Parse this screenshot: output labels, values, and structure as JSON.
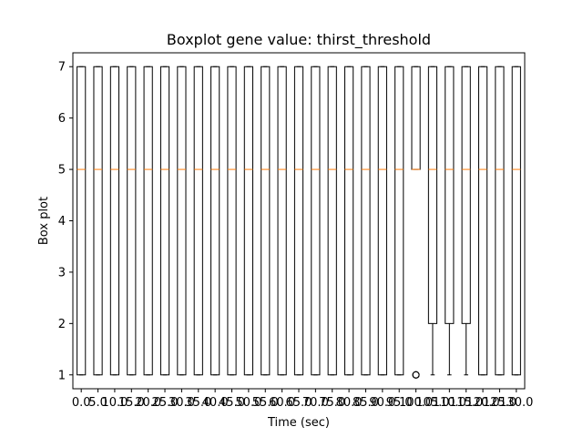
{
  "chart_data": {
    "type": "boxplot",
    "title": "Boxplot gene value: thirst_threshold",
    "xlabel": "Time (sec)",
    "ylabel": "Box plot",
    "ylim": [
      0.73,
      7.27
    ],
    "yticks": [
      1,
      2,
      3,
      4,
      5,
      6,
      7
    ],
    "grid": false,
    "categories": [
      "0.0",
      "5.0",
      "10.0",
      "15.0",
      "20.0",
      "25.0",
      "30.0",
      "35.0",
      "40.0",
      "45.0",
      "50.0",
      "55.0",
      "60.0",
      "65.0",
      "70.0",
      "75.0",
      "80.0",
      "85.0",
      "90.0",
      "95.0",
      "100.0",
      "105.0",
      "110.0",
      "115.0",
      "120.0",
      "125.0",
      "130.0"
    ],
    "boxes": [
      {
        "whislo": 1,
        "q1": 1,
        "med": 5,
        "q3": 7,
        "whishi": 7,
        "fliers": []
      },
      {
        "whislo": 1,
        "q1": 1,
        "med": 5,
        "q3": 7,
        "whishi": 7,
        "fliers": []
      },
      {
        "whislo": 1,
        "q1": 1,
        "med": 5,
        "q3": 7,
        "whishi": 7,
        "fliers": []
      },
      {
        "whislo": 1,
        "q1": 1,
        "med": 5,
        "q3": 7,
        "whishi": 7,
        "fliers": []
      },
      {
        "whislo": 1,
        "q1": 1,
        "med": 5,
        "q3": 7,
        "whishi": 7,
        "fliers": []
      },
      {
        "whislo": 1,
        "q1": 1,
        "med": 5,
        "q3": 7,
        "whishi": 7,
        "fliers": []
      },
      {
        "whislo": 1,
        "q1": 1,
        "med": 5,
        "q3": 7,
        "whishi": 7,
        "fliers": []
      },
      {
        "whislo": 1,
        "q1": 1,
        "med": 5,
        "q3": 7,
        "whishi": 7,
        "fliers": []
      },
      {
        "whislo": 1,
        "q1": 1,
        "med": 5,
        "q3": 7,
        "whishi": 7,
        "fliers": []
      },
      {
        "whislo": 1,
        "q1": 1,
        "med": 5,
        "q3": 7,
        "whishi": 7,
        "fliers": []
      },
      {
        "whislo": 1,
        "q1": 1,
        "med": 5,
        "q3": 7,
        "whishi": 7,
        "fliers": []
      },
      {
        "whislo": 1,
        "q1": 1,
        "med": 5,
        "q3": 7,
        "whishi": 7,
        "fliers": []
      },
      {
        "whislo": 1,
        "q1": 1,
        "med": 5,
        "q3": 7,
        "whishi": 7,
        "fliers": []
      },
      {
        "whislo": 1,
        "q1": 1,
        "med": 5,
        "q3": 7,
        "whishi": 7,
        "fliers": []
      },
      {
        "whislo": 1,
        "q1": 1,
        "med": 5,
        "q3": 7,
        "whishi": 7,
        "fliers": []
      },
      {
        "whislo": 1,
        "q1": 1,
        "med": 5,
        "q3": 7,
        "whishi": 7,
        "fliers": []
      },
      {
        "whislo": 1,
        "q1": 1,
        "med": 5,
        "q3": 7,
        "whishi": 7,
        "fliers": []
      },
      {
        "whislo": 1,
        "q1": 1,
        "med": 5,
        "q3": 7,
        "whishi": 7,
        "fliers": []
      },
      {
        "whislo": 1,
        "q1": 1,
        "med": 5,
        "q3": 7,
        "whishi": 7,
        "fliers": []
      },
      {
        "whislo": 1,
        "q1": 1,
        "med": 5,
        "q3": 7,
        "whishi": 7,
        "fliers": []
      },
      {
        "whislo": 5,
        "q1": 5,
        "med": 5,
        "q3": 7,
        "whishi": 7,
        "fliers": [
          1,
          1,
          1
        ]
      },
      {
        "whislo": 1,
        "q1": 2,
        "med": 5,
        "q3": 7,
        "whishi": 7,
        "fliers": []
      },
      {
        "whislo": 1,
        "q1": 2,
        "med": 5,
        "q3": 7,
        "whishi": 7,
        "fliers": []
      },
      {
        "whislo": 1,
        "q1": 2,
        "med": 5,
        "q3": 7,
        "whishi": 7,
        "fliers": []
      },
      {
        "whislo": 1,
        "q1": 1,
        "med": 5,
        "q3": 7,
        "whishi": 7,
        "fliers": []
      },
      {
        "whislo": 1,
        "q1": 1,
        "med": 5,
        "q3": 7,
        "whishi": 7,
        "fliers": []
      },
      {
        "whislo": 1,
        "q1": 1,
        "med": 5,
        "q3": 7,
        "whishi": 7,
        "fliers": []
      }
    ],
    "colors": {
      "box": "#000000",
      "median": "#ff7f0e",
      "background": "#ffffff"
    }
  }
}
